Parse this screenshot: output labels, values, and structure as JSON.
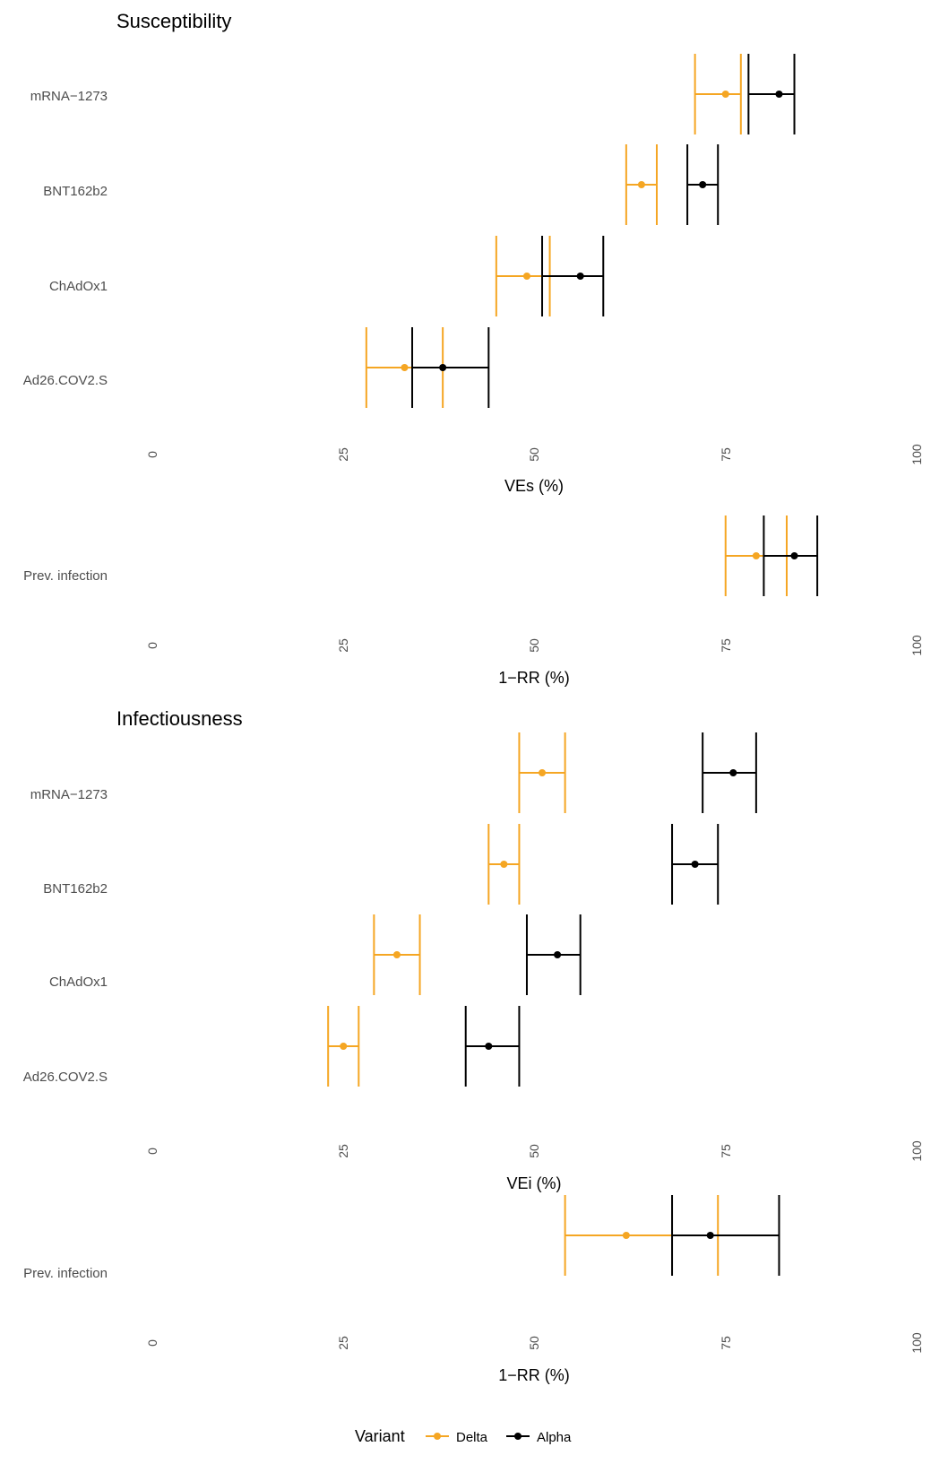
{
  "chart_data": [
    {
      "type": "forest",
      "title": "Susceptibility",
      "xlabel": "VEs (%)",
      "xlim": [
        0,
        100
      ],
      "xticks": [
        0,
        25,
        50,
        75,
        100
      ],
      "categories": [
        "mRNA−1273",
        "BNT162b2",
        "ChAdOx1",
        "Ad26.COV2.S"
      ],
      "series": [
        {
          "name": "Delta",
          "color": "#F5A623",
          "points": [
            {
              "est": 75,
              "lo": 71,
              "hi": 77
            },
            {
              "est": 64,
              "lo": 62,
              "hi": 66
            },
            {
              "est": 49,
              "lo": 45,
              "hi": 52
            },
            {
              "est": 33,
              "lo": 28,
              "hi": 38
            }
          ]
        },
        {
          "name": "Alpha",
          "color": "#000000",
          "points": [
            {
              "est": 82,
              "lo": 78,
              "hi": 84
            },
            {
              "est": 72,
              "lo": 70,
              "hi": 74
            },
            {
              "est": 56,
              "lo": 51,
              "hi": 59
            },
            {
              "est": 38,
              "lo": 34,
              "hi": 44
            }
          ]
        }
      ]
    },
    {
      "type": "forest",
      "title": "",
      "xlabel": "1−RR (%)",
      "xlim": [
        0,
        100
      ],
      "xticks": [
        0,
        25,
        50,
        75,
        100
      ],
      "categories": [
        "Prev. infection"
      ],
      "series": [
        {
          "name": "Delta",
          "color": "#F5A623",
          "points": [
            {
              "est": 79,
              "lo": 75,
              "hi": 83
            }
          ]
        },
        {
          "name": "Alpha",
          "color": "#000000",
          "points": [
            {
              "est": 84,
              "lo": 80,
              "hi": 87
            }
          ]
        }
      ]
    },
    {
      "type": "forest",
      "title": "Infectiousness",
      "xlabel": "VEi (%)",
      "xlim": [
        0,
        100
      ],
      "xticks": [
        0,
        25,
        50,
        75,
        100
      ],
      "categories": [
        "mRNA−1273",
        "BNT162b2",
        "ChAdOx1",
        "Ad26.COV2.S"
      ],
      "series": [
        {
          "name": "Delta",
          "color": "#F5A623",
          "points": [
            {
              "est": 51,
              "lo": 48,
              "hi": 54
            },
            {
              "est": 46,
              "lo": 44,
              "hi": 48
            },
            {
              "est": 32,
              "lo": 29,
              "hi": 35
            },
            {
              "est": 25,
              "lo": 23,
              "hi": 27
            }
          ]
        },
        {
          "name": "Alpha",
          "color": "#000000",
          "points": [
            {
              "est": 76,
              "lo": 72,
              "hi": 79
            },
            {
              "est": 71,
              "lo": 68,
              "hi": 74
            },
            {
              "est": 53,
              "lo": 49,
              "hi": 56
            },
            {
              "est": 44,
              "lo": 41,
              "hi": 48
            }
          ]
        }
      ]
    },
    {
      "type": "forest",
      "title": "",
      "xlabel": "1−RR (%)",
      "xlim": [
        0,
        100
      ],
      "xticks": [
        0,
        25,
        50,
        75,
        100
      ],
      "categories": [
        "Prev. infection"
      ],
      "series": [
        {
          "name": "Delta",
          "color": "#F5A623",
          "points": [
            {
              "est": 62,
              "lo": 54,
              "hi": 74
            }
          ]
        },
        {
          "name": "Alpha",
          "color": "#000000",
          "points": [
            {
              "est": 73,
              "lo": 68,
              "hi": 82
            }
          ]
        }
      ]
    }
  ],
  "legend": {
    "title": "Variant",
    "placement": "bottom",
    "entries": [
      {
        "label": "Delta",
        "color": "#F5A623"
      },
      {
        "label": "Alpha",
        "color": "#000000"
      }
    ]
  }
}
